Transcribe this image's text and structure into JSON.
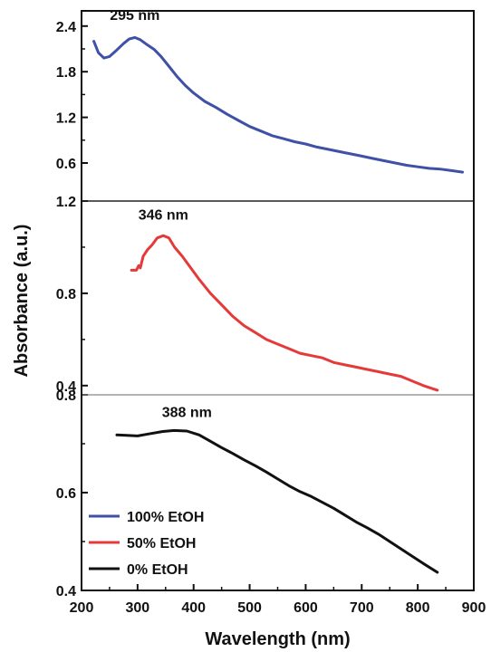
{
  "chart_data": {
    "type": "line",
    "xlabel": "Wavelength (nm)",
    "ylabel": "Absorbance (a.u.)",
    "xlim": [
      200,
      900
    ],
    "x_ticks": [
      "200",
      "300",
      "400",
      "500",
      "600",
      "700",
      "800",
      "900"
    ],
    "legend": {
      "placement": "bottom-left"
    },
    "panels": [
      {
        "series_index": 0,
        "ylim": [
          0.1,
          2.6
        ],
        "y_ticks": [
          {
            "value": 0.6,
            "label": "0.6"
          },
          {
            "value": 1.2,
            "label": "1.2"
          },
          {
            "value": 1.8,
            "label": "1.8"
          },
          {
            "value": 2.4,
            "label": "2.4"
          }
        ],
        "annotation": {
          "text": "295 nm",
          "x": 295,
          "y": 2.48
        }
      },
      {
        "series_index": 1,
        "ylim": [
          0.36,
          1.2
        ],
        "y_ticks": [
          {
            "value": 0.4,
            "label": "0.4"
          },
          {
            "value": 0.8,
            "label": "0.8"
          },
          {
            "value": 1.2,
            "label": "1.2"
          }
        ],
        "annotation": {
          "text": "346 nm",
          "x": 346,
          "y": 1.12
        }
      },
      {
        "series_index": 2,
        "ylim": [
          0.4,
          0.8
        ],
        "y_ticks": [
          {
            "value": 0.4,
            "label": "0.4"
          },
          {
            "value": 0.6,
            "label": "0.6"
          },
          {
            "value": 0.8,
            "label": "0.8"
          }
        ],
        "annotation": {
          "text": "388 nm",
          "x": 388,
          "y": 0.755
        }
      }
    ],
    "series": [
      {
        "name": "100% EtOH",
        "color": "#3f51a6",
        "points": [
          [
            222,
            2.2
          ],
          [
            230,
            2.05
          ],
          [
            240,
            1.98
          ],
          [
            250,
            2.0
          ],
          [
            262,
            2.08
          ],
          [
            275,
            2.17
          ],
          [
            285,
            2.23
          ],
          [
            295,
            2.25
          ],
          [
            305,
            2.22
          ],
          [
            318,
            2.15
          ],
          [
            330,
            2.09
          ],
          [
            342,
            2.0
          ],
          [
            355,
            1.88
          ],
          [
            370,
            1.74
          ],
          [
            385,
            1.62
          ],
          [
            400,
            1.52
          ],
          [
            420,
            1.41
          ],
          [
            440,
            1.33
          ],
          [
            460,
            1.24
          ],
          [
            480,
            1.16
          ],
          [
            500,
            1.08
          ],
          [
            520,
            1.02
          ],
          [
            540,
            0.96
          ],
          [
            560,
            0.92
          ],
          [
            580,
            0.88
          ],
          [
            600,
            0.85
          ],
          [
            620,
            0.81
          ],
          [
            640,
            0.78
          ],
          [
            660,
            0.75
          ],
          [
            680,
            0.72
          ],
          [
            700,
            0.69
          ],
          [
            720,
            0.66
          ],
          [
            740,
            0.63
          ],
          [
            760,
            0.6
          ],
          [
            780,
            0.57
          ],
          [
            800,
            0.55
          ],
          [
            820,
            0.53
          ],
          [
            840,
            0.52
          ],
          [
            860,
            0.5
          ],
          [
            880,
            0.48
          ]
        ]
      },
      {
        "name": "50% EtOH",
        "color": "#e43a3a",
        "points": [
          [
            289,
            0.9
          ],
          [
            298,
            0.9
          ],
          [
            302,
            0.92
          ],
          [
            305,
            0.91
          ],
          [
            310,
            0.96
          ],
          [
            318,
            0.99
          ],
          [
            326,
            1.01
          ],
          [
            335,
            1.04
          ],
          [
            346,
            1.05
          ],
          [
            356,
            1.04
          ],
          [
            366,
            1.0
          ],
          [
            380,
            0.96
          ],
          [
            395,
            0.91
          ],
          [
            410,
            0.86
          ],
          [
            430,
            0.8
          ],
          [
            450,
            0.75
          ],
          [
            470,
            0.7
          ],
          [
            490,
            0.66
          ],
          [
            510,
            0.63
          ],
          [
            530,
            0.6
          ],
          [
            550,
            0.58
          ],
          [
            570,
            0.56
          ],
          [
            590,
            0.54
          ],
          [
            610,
            0.53
          ],
          [
            630,
            0.52
          ],
          [
            650,
            0.5
          ],
          [
            670,
            0.49
          ],
          [
            690,
            0.48
          ],
          [
            710,
            0.47
          ],
          [
            730,
            0.46
          ],
          [
            750,
            0.45
          ],
          [
            770,
            0.44
          ],
          [
            790,
            0.42
          ],
          [
            810,
            0.4
          ],
          [
            835,
            0.38
          ]
        ]
      },
      {
        "name": "0% EtOH",
        "color": "#111111",
        "points": [
          [
            263,
            0.718
          ],
          [
            280,
            0.717
          ],
          [
            300,
            0.716
          ],
          [
            320,
            0.72
          ],
          [
            345,
            0.725
          ],
          [
            365,
            0.727
          ],
          [
            388,
            0.726
          ],
          [
            410,
            0.718
          ],
          [
            430,
            0.705
          ],
          [
            450,
            0.692
          ],
          [
            470,
            0.68
          ],
          [
            490,
            0.667
          ],
          [
            510,
            0.655
          ],
          [
            530,
            0.642
          ],
          [
            550,
            0.628
          ],
          [
            570,
            0.614
          ],
          [
            590,
            0.602
          ],
          [
            610,
            0.592
          ],
          [
            630,
            0.58
          ],
          [
            650,
            0.568
          ],
          [
            670,
            0.554
          ],
          [
            690,
            0.54
          ],
          [
            710,
            0.528
          ],
          [
            730,
            0.515
          ],
          [
            750,
            0.5
          ],
          [
            770,
            0.485
          ],
          [
            790,
            0.47
          ],
          [
            810,
            0.455
          ],
          [
            835,
            0.437
          ]
        ]
      }
    ]
  }
}
